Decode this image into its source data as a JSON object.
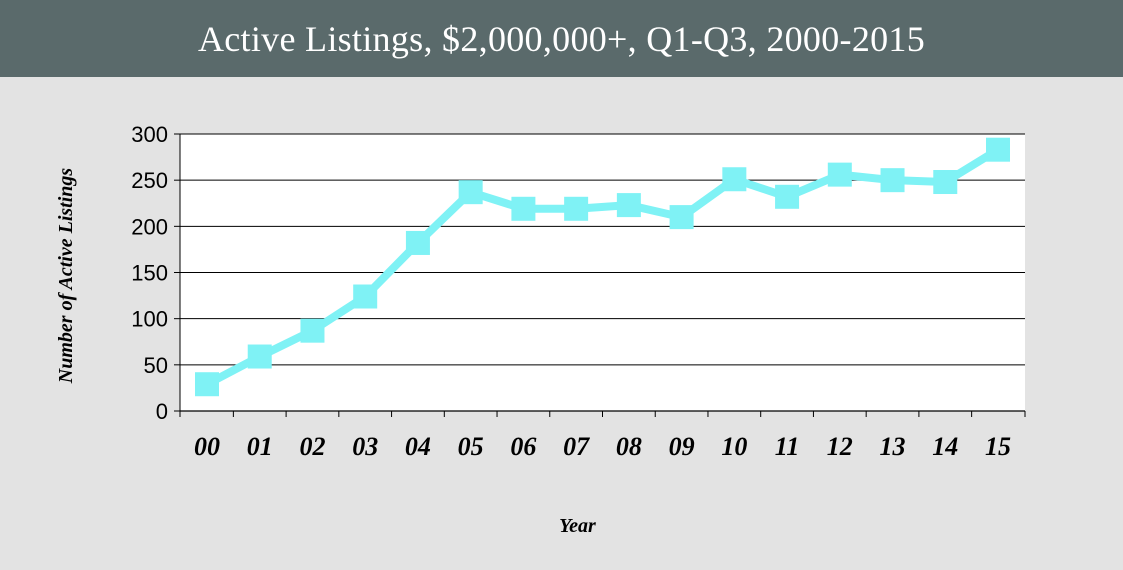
{
  "header": {
    "title": "Active Listings, $2,000,000+, Q1-Q3, 2000-2015"
  },
  "colors": {
    "header_bg": "#5a6a6b",
    "page_bg": "#e3e3e3",
    "plot_bg": "#ffffff",
    "line": "#7ff2f5",
    "grid": "#000000"
  },
  "chart_data": {
    "type": "line",
    "title": "Active Listings, $2,000,000+, Q1-Q3, 2000-2015",
    "xlabel": "Year",
    "ylabel": "Number of Active Listings",
    "categories": [
      "00",
      "01",
      "02",
      "03",
      "04",
      "05",
      "06",
      "07",
      "08",
      "09",
      "10",
      "11",
      "12",
      "13",
      "14",
      "15"
    ],
    "series": [
      {
        "values": [
          29,
          59,
          87,
          124,
          182,
          237,
          219,
          219,
          223,
          210,
          251,
          232,
          256,
          250,
          248,
          283
        ],
        "marker": "square"
      }
    ],
    "ylim": [
      0,
      300
    ],
    "yticks": [
      0,
      50,
      100,
      150,
      200,
      250,
      300
    ],
    "grid": true,
    "legend": "none"
  }
}
